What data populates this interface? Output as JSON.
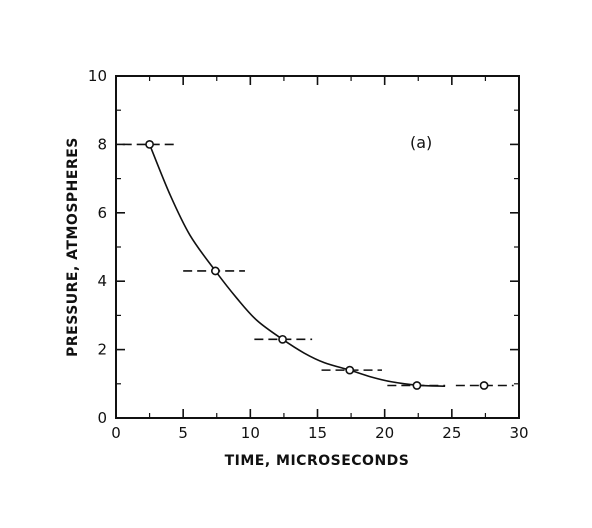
{
  "chart_data": {
    "type": "scatter",
    "title": "",
    "panel_label": "(a)",
    "xlabel": "TIME, MICROSECONDS",
    "ylabel": "PRESSURE, ATMOSPHERES",
    "xlim": [
      0,
      30
    ],
    "ylim": [
      0,
      10
    ],
    "x_ticks": [
      0,
      5,
      10,
      15,
      20,
      25,
      30
    ],
    "y_ticks": [
      0,
      2,
      4,
      6,
      8,
      10
    ],
    "grid": false,
    "legend": "none",
    "series": [
      {
        "points": [
          {
            "x": 2.5,
            "y": 8.0,
            "xerr": [
              0.5,
              4.5
            ]
          },
          {
            "x": 7.4,
            "y": 4.3,
            "xerr": [
              5.0,
              9.6
            ]
          },
          {
            "x": 12.4,
            "y": 2.3,
            "xerr": [
              10.3,
              14.6
            ]
          },
          {
            "x": 17.4,
            "y": 1.4,
            "xerr": [
              15.3,
              19.8
            ]
          },
          {
            "x": 22.4,
            "y": 0.95,
            "xerr": [
              20.2,
              24.5
            ]
          },
          {
            "x": 27.4,
            "y": 0.95,
            "xerr": [
              25.3,
              29.6
            ]
          }
        ]
      }
    ],
    "fit_curve": {
      "x": [
        2.5,
        4.0,
        5.5,
        7.4,
        9.0,
        10.5,
        12.4,
        14.0,
        15.5,
        17.4,
        19.0,
        20.5,
        22.4,
        24.5
      ],
      "y": [
        8.0,
        6.55,
        5.35,
        4.3,
        3.5,
        2.85,
        2.3,
        1.9,
        1.62,
        1.4,
        1.2,
        1.06,
        0.96,
        0.93
      ]
    }
  }
}
